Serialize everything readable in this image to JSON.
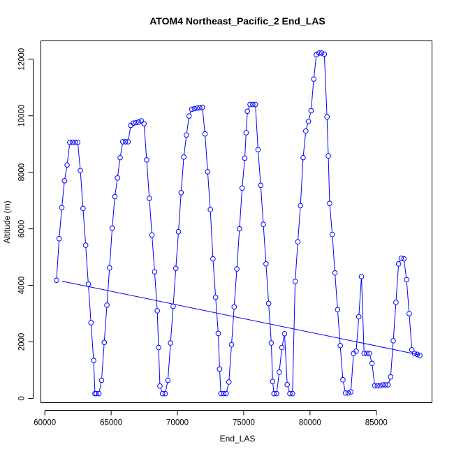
{
  "chart_data": {
    "type": "line",
    "title": "ATOM4 Northeast_Pacific_2 End_LAS",
    "xlabel": "End_LAS",
    "ylabel": "Altitude (m)",
    "xlim": [
      59700,
      89200
    ],
    "ylim": [
      -150,
      12650
    ],
    "x_ticks": [
      60000,
      65000,
      70000,
      75000,
      80000,
      85000
    ],
    "y_ticks": [
      0,
      2000,
      4000,
      6000,
      8000,
      10000,
      12000
    ],
    "series": [
      {
        "color": "#0000ff",
        "marker": "open-circle",
        "x": [
          60880,
          61080,
          61280,
          61480,
          61680,
          61880,
          62080,
          62280,
          62480,
          62680,
          62880,
          63080,
          63280,
          63480,
          63680,
          63780,
          63880,
          64080,
          64280,
          64480,
          64680,
          64880,
          65080,
          65280,
          65480,
          65680,
          65880,
          66080,
          66280,
          66480,
          66680,
          66880,
          67080,
          67280,
          67480,
          67680,
          67880,
          68080,
          68280,
          68480,
          68580,
          68680,
          68880,
          69080,
          69280,
          69480,
          69680,
          69880,
          70080,
          70280,
          70480,
          70680,
          70880,
          71080,
          71280,
          71480,
          71680,
          71880,
          72080,
          72280,
          72480,
          72680,
          72880,
          73080,
          73180,
          73280,
          73480,
          73680,
          73880,
          74080,
          74280,
          74480,
          74680,
          74880,
          75080,
          75180,
          75280,
          75480,
          75680,
          75880,
          76080,
          76280,
          76480,
          76680,
          76880,
          77080,
          77180,
          77280,
          77480,
          77680,
          77880,
          78080,
          78280,
          78480,
          78680,
          78880,
          79080,
          79280,
          79480,
          79680,
          79880,
          80080,
          80280,
          80480,
          80680,
          80880,
          81080,
          81280,
          81380,
          81480,
          81680,
          81880,
          82080,
          82280,
          82480,
          82680,
          82880,
          83080,
          83280,
          83480,
          83680,
          83880,
          84080,
          84280,
          84480,
          84680,
          84880,
          85080,
          85280,
          85480,
          85680,
          85880,
          86080,
          86280,
          86480,
          86680,
          86880,
          87080,
          87280,
          87480,
          87680,
          87880,
          88080,
          88280
        ],
        "y": [
          4180,
          5650,
          6750,
          7700,
          8260,
          9060,
          9060,
          9060,
          9060,
          8060,
          6720,
          5420,
          4040,
          2680,
          1340,
          170,
          170,
          170,
          640,
          1980,
          3300,
          4620,
          6020,
          7140,
          7800,
          8520,
          9080,
          9080,
          9080,
          9660,
          9740,
          9760,
          9780,
          9820,
          9720,
          8440,
          7080,
          5780,
          4480,
          3100,
          1800,
          440,
          170,
          170,
          640,
          1960,
          3260,
          4600,
          5900,
          7280,
          8540,
          9320,
          9990,
          10230,
          10250,
          10270,
          10280,
          10300,
          9360,
          8020,
          6680,
          4940,
          3580,
          2300,
          1040,
          170,
          170,
          170,
          580,
          1900,
          3240,
          4580,
          6000,
          7440,
          8500,
          9400,
          10160,
          10400,
          10400,
          10400,
          8800,
          7540,
          6160,
          4760,
          3360,
          1960,
          600,
          170,
          170,
          930,
          1800,
          2290,
          490,
          170,
          170,
          4140,
          5540,
          6820,
          8520,
          9460,
          9800,
          10180,
          11300,
          12160,
          12220,
          12220,
          12180,
          9960,
          8580,
          6900,
          5800,
          4440,
          3140,
          1870,
          660,
          190,
          190,
          230,
          1590,
          1670,
          2890,
          4310,
          1590,
          1590,
          1590,
          1240,
          450,
          450,
          450,
          480,
          480,
          480,
          760,
          2040,
          3400,
          4760,
          4960,
          4940,
          4200,
          3000,
          1720,
          1590,
          1560,
          1520
        ]
      },
      {
        "color": "#0000ff",
        "marker": "none",
        "x": [
          61280,
          88280
        ],
        "y": [
          4150,
          1540
        ]
      }
    ]
  }
}
